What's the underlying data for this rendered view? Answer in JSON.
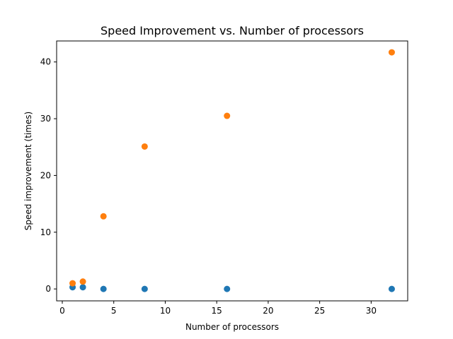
{
  "chart_data": {
    "type": "scatter",
    "title": "Speed Improvement vs. Number of processors",
    "xlabel": "Number of processors",
    "ylabel": "Speed improvement (times)",
    "xlim": [
      -0.55,
      33.55
    ],
    "ylim": [
      -2.1,
      43.7
    ],
    "xticks": [
      0,
      5,
      10,
      15,
      20,
      25,
      30
    ],
    "yticks": [
      0,
      10,
      20,
      30,
      40
    ],
    "grid": false,
    "legend": "none",
    "series": [
      {
        "color": "#1f77b4",
        "x": [
          1,
          2,
          4,
          8,
          16,
          32
        ],
        "y": [
          0.3,
          0.3,
          0.0,
          0.0,
          0.0,
          0.0
        ]
      },
      {
        "color": "#ff7f0e",
        "x": [
          1,
          2,
          4,
          8,
          16,
          32
        ],
        "y": [
          1.0,
          1.3,
          12.8,
          25.1,
          30.5,
          41.7
        ]
      }
    ]
  }
}
